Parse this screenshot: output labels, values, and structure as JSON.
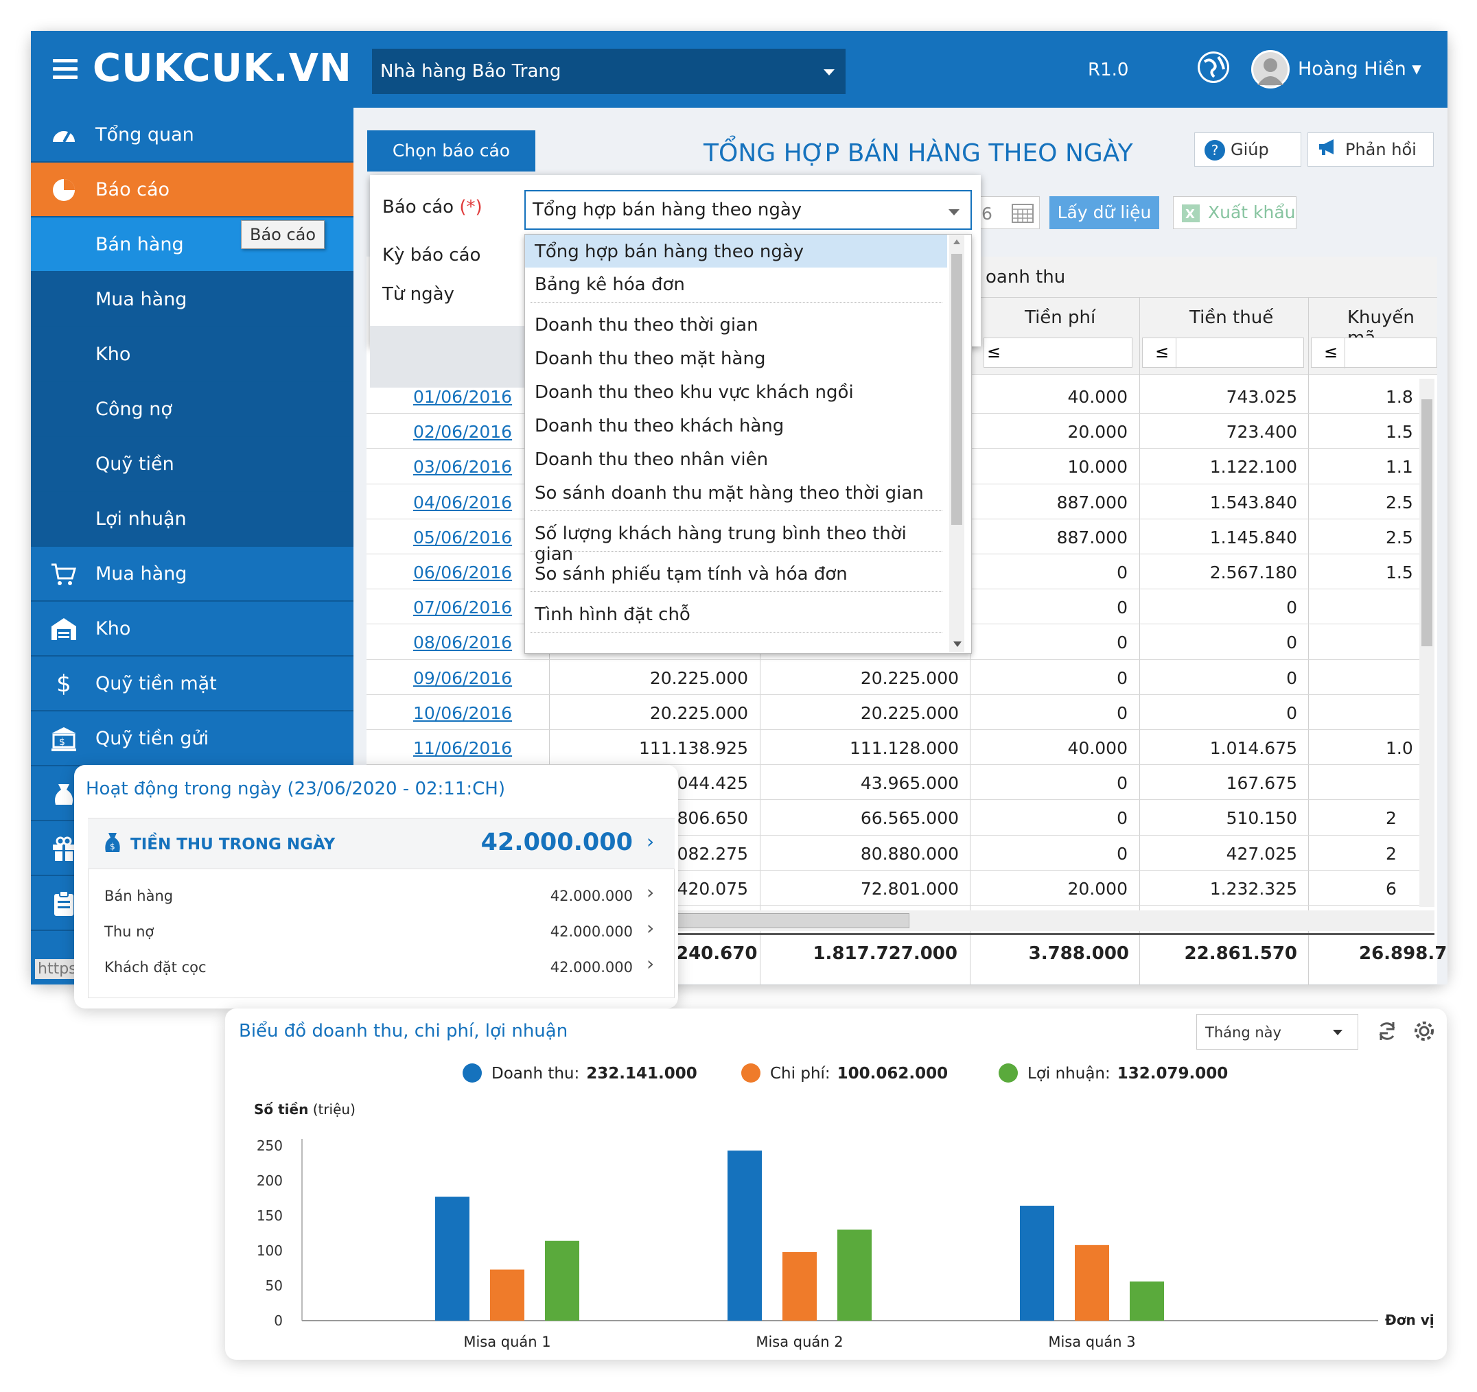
{
  "header": {
    "logo": "CUKCUK.VN",
    "restaurant": "Nhà hàng Bảo Trang",
    "version": "R1.0",
    "user": "Hoàng Hiền ▾"
  },
  "sidebar": {
    "items": [
      {
        "label": "Tổng quan",
        "icon": "dashboard-icon"
      },
      {
        "label": "Báo cáo",
        "icon": "pie-chart-icon"
      },
      {
        "label": "Bán hàng"
      },
      {
        "label": "Mua hàng"
      },
      {
        "label": "Kho"
      },
      {
        "label": "Công nợ"
      },
      {
        "label": "Quỹ tiền"
      },
      {
        "label": "Lợi nhuận"
      },
      {
        "label": "Mua hàng",
        "icon": "cart-icon"
      },
      {
        "label": "Kho",
        "icon": "warehouse-icon"
      },
      {
        "label": "Quỹ tiền mặt",
        "icon": "dollar-icon"
      },
      {
        "label": "Quỹ tiền gửi",
        "icon": "bank-icon"
      }
    ],
    "tooltip": "Báo cáo",
    "url_hint": "https:"
  },
  "report": {
    "choose_button": "Chọn báo cáo",
    "title": "TỔNG HỢP BÁN HÀNG THEO NGÀY",
    "help": "Giúp",
    "feedback": "Phản hồi",
    "fetch": "Lấy dữ liệu",
    "export": "Xuất khẩu",
    "date_fragment": "6",
    "filter_op": "≤"
  },
  "dropdown": {
    "label_report": "Báo cáo",
    "required": "(*)",
    "label_period": "Kỳ báo cáo",
    "label_from": "Từ ngày",
    "selected": "Tổng hợp bán hàng theo ngày",
    "options": [
      "Tổng hợp bán hàng theo ngày",
      "Bảng kê hóa đơn",
      "Doanh thu theo thời gian",
      "Doanh thu theo mặt hàng",
      "Doanh thu theo khu vực khách ngồi",
      "Doanh thu theo khách hàng",
      "Doanh thu theo nhân viên",
      "So sánh doanh thu mặt hàng theo thời gian",
      "Số lượng khách hàng trung bình theo thời gian",
      "So sánh phiếu tạm tính và hóa đơn",
      "Tình hình đặt chỗ"
    ]
  },
  "table": {
    "group_header": "oanh thu",
    "headers": [
      "Tiền phí",
      "Tiền thuế",
      "Khuyến mã"
    ],
    "rows": [
      {
        "date": "01/06/2016",
        "c1": "",
        "c2": "",
        "fee": "40.000",
        "tax": "743.025",
        "promo": "1.8"
      },
      {
        "date": "02/06/2016",
        "c1": "",
        "c2": "",
        "fee": "20.000",
        "tax": "723.400",
        "promo": "1.5"
      },
      {
        "date": "03/06/2016",
        "c1": "",
        "c2": "",
        "fee": "10.000",
        "tax": "1.122.100",
        "promo": "1.1"
      },
      {
        "date": "04/06/2016",
        "c1": "",
        "c2": "",
        "fee": "887.000",
        "tax": "1.543.840",
        "promo": "2.5"
      },
      {
        "date": "05/06/2016",
        "c1": "",
        "c2": "",
        "fee": "887.000",
        "tax": "1.145.840",
        "promo": "2.5"
      },
      {
        "date": "06/06/2016",
        "c1": "",
        "c2": "",
        "fee": "0",
        "tax": "2.567.180",
        "promo": "1.5"
      },
      {
        "date": "07/06/2016",
        "c1": "",
        "c2": "",
        "fee": "0",
        "tax": "0",
        "promo": ""
      },
      {
        "date": "08/06/2016",
        "c1": "",
        "c2": "",
        "fee": "0",
        "tax": "0",
        "promo": ""
      },
      {
        "date": "09/06/2016",
        "c1": "20.225.000",
        "c2": "20.225.000",
        "fee": "0",
        "tax": "0",
        "promo": ""
      },
      {
        "date": "10/06/2016",
        "c1": "20.225.000",
        "c2": "20.225.000",
        "fee": "0",
        "tax": "0",
        "promo": ""
      },
      {
        "date": "11/06/2016",
        "c1": "111.138.925",
        "c2": "111.128.000",
        "fee": "40.000",
        "tax": "1.014.675",
        "promo": "1.0"
      },
      {
        "date": "",
        "c1": "044.425",
        "c2": "43.965.000",
        "fee": "0",
        "tax": "167.675",
        "promo": ""
      },
      {
        "date": "",
        "c1": "806.650",
        "c2": "66.565.000",
        "fee": "0",
        "tax": "510.150",
        "promo": "2"
      },
      {
        "date": "",
        "c1": "082.275",
        "c2": "80.880.000",
        "fee": "0",
        "tax": "427.025",
        "promo": "2"
      },
      {
        "date": "",
        "c1": "420.075",
        "c2": "72.801.000",
        "fee": "20.000",
        "tax": "1.232.325",
        "promo": "6"
      }
    ],
    "totals": {
      "c1": "240.670",
      "c2": "1.817.727.000",
      "fee": "3.788.000",
      "tax": "22.861.570",
      "promo": "26.898.7"
    }
  },
  "activity": {
    "title": "Hoạt động trong ngày (23/06/2020 - 02:11:CH)",
    "head_label": "TIỀN THU TRONG NGÀY",
    "head_value": "42.000.000",
    "rows": [
      {
        "label": "Bán hàng",
        "value": "42.000.000"
      },
      {
        "label": "Thu nợ",
        "value": "42.000.000"
      },
      {
        "label": "Khách đặt cọc",
        "value": "42.000.000"
      }
    ]
  },
  "chart_card": {
    "title": "Biểu đồ doanh thu, chi phí, lợi nhuận",
    "period": "Tháng này",
    "legend": [
      {
        "label": "Doanh thu:",
        "value": "232.141.000",
        "color": "#1572bd"
      },
      {
        "label": "Chi phí:",
        "value": "100.062.000",
        "color": "#ef7b2a"
      },
      {
        "label": "Lợi nhuận:",
        "value": "132.079.000",
        "color": "#5aaa3c"
      }
    ]
  },
  "chart_data": {
    "type": "bar",
    "ylabel_bold": "Số tiền",
    "ylabel_unit": "(triệu)",
    "xlabel": "Đơn vị",
    "categories": [
      "Misa quán 1",
      "Misa quán 2",
      "Misa quán 3"
    ],
    "series": [
      {
        "values": [
          177,
          243,
          164
        ],
        "color": "#1572bd"
      },
      {
        "values": [
          73,
          98,
          108
        ],
        "color": "#ef7b2a"
      },
      {
        "values": [
          114,
          130,
          56
        ],
        "color": "#5aaa3c"
      }
    ],
    "yticks": [
      "250",
      "200",
      "150",
      "100",
      "50",
      "0"
    ],
    "ylim": [
      0,
      250
    ],
    "grid": false
  }
}
